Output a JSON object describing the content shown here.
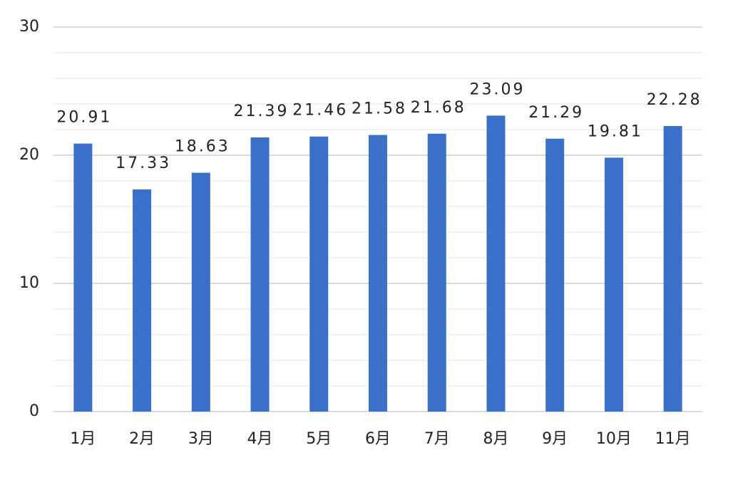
{
  "chart_data": {
    "type": "bar",
    "categories": [
      "1月",
      "2月",
      "3月",
      "4月",
      "5月",
      "6月",
      "7月",
      "8月",
      "9月",
      "10月",
      "11月"
    ],
    "values": [
      20.91,
      17.33,
      18.63,
      21.39,
      21.46,
      21.58,
      21.68,
      23.09,
      21.29,
      19.81,
      22.28
    ],
    "color": "#3a70c9",
    "ylim": [
      0,
      30
    ],
    "yticks": [
      0,
      10,
      20,
      30
    ],
    "grid": true
  }
}
